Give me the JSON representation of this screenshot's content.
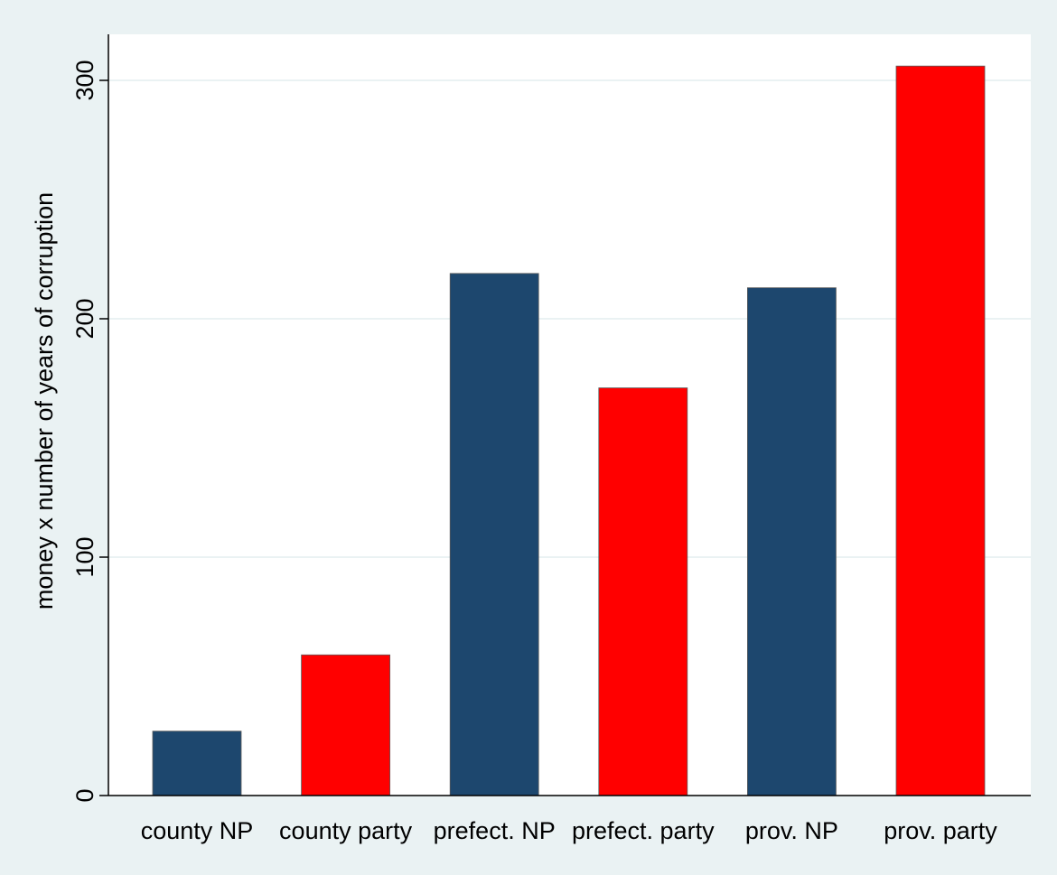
{
  "chart_data": {
    "type": "bar",
    "title": "",
    "xlabel": "",
    "ylabel": "money x number of years of corruption",
    "categories": [
      "county NP",
      "county party",
      "prefect. NP",
      "prefect. party",
      "prov. NP",
      "prov. party"
    ],
    "values": [
      27,
      59,
      219,
      171,
      213,
      306
    ],
    "bar_colors": [
      "#1d476e",
      "#ff0000",
      "#1d476e",
      "#ff0000",
      "#1d476e",
      "#ff0000"
    ],
    "ylim": [
      0,
      320
    ],
    "yticks": [
      0,
      100,
      200,
      300
    ],
    "grid": true,
    "legend": "none",
    "colors": {
      "background": "#eaf2f3",
      "plot_background": "#ffffff",
      "grid": "#eaf2f3",
      "axis": "#000000"
    }
  }
}
